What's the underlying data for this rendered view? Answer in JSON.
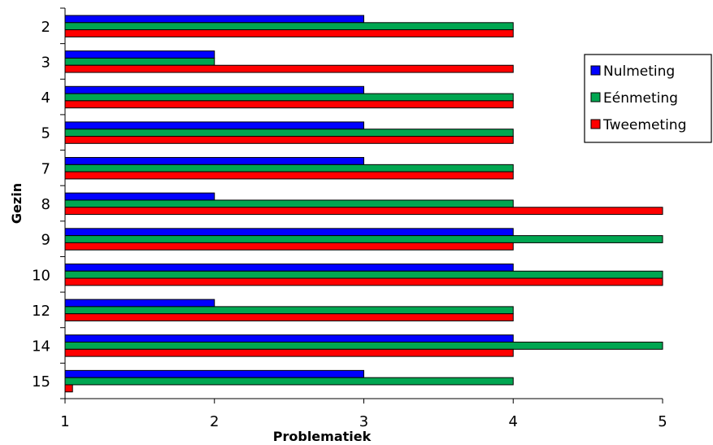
{
  "chart_data": {
    "type": "bar",
    "orientation": "horizontal",
    "categories": [
      "2",
      "3",
      "4",
      "5",
      "7",
      "8",
      "9",
      "10",
      "12",
      "14",
      "15"
    ],
    "series": [
      {
        "name": "Nulmeting",
        "color": "#0000ff",
        "values": [
          3,
          2,
          3,
          3,
          3,
          2,
          4,
          4,
          2,
          4,
          3
        ]
      },
      {
        "name": "Eénmeting",
        "color": "#00a651",
        "values": [
          4,
          2,
          4,
          4,
          4,
          4,
          5,
          5,
          4,
          5,
          4
        ]
      },
      {
        "name": "Tweemeting",
        "color": "#ff0000",
        "values": [
          4,
          4,
          4,
          4,
          4,
          5,
          4,
          5,
          4,
          4,
          1.05
        ]
      }
    ],
    "xlabel": "Problematiek",
    "ylabel": "Gezin",
    "xlim": [
      1,
      5
    ],
    "xticks": [
      "1",
      "2",
      "3",
      "4",
      "5"
    ],
    "grid": false,
    "legend_position": "top-right"
  }
}
